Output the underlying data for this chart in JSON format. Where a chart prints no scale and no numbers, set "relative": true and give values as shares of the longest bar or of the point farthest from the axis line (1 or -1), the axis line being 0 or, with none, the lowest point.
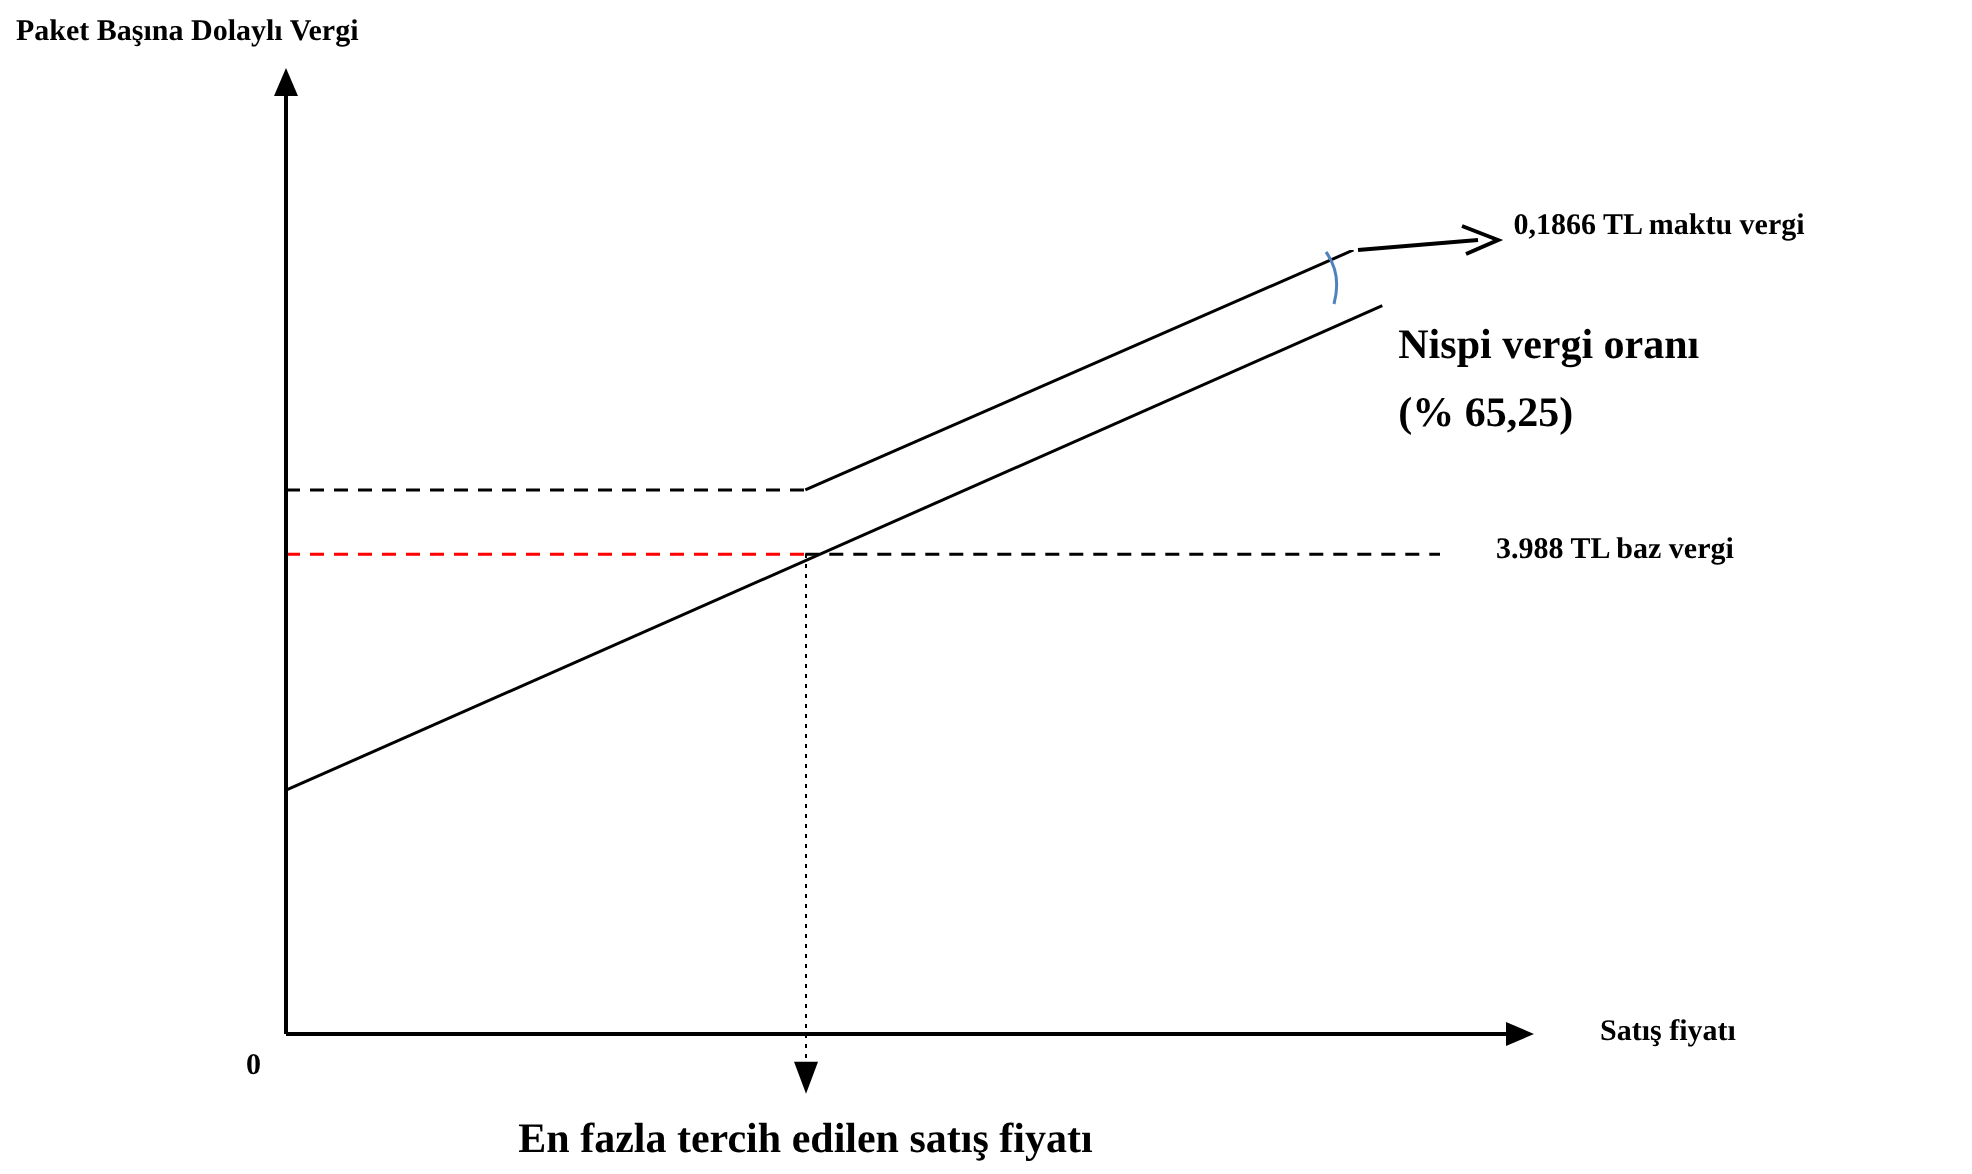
{
  "chart_data": {
    "type": "line",
    "relative": true,
    "xlabel": "Satış fiyatı",
    "legend": false,
    "marker": "none",
    "categories": [
      null,
      null,
      null,
      null,
      null,
      null,
      null,
      null,
      null,
      null,
      null,
      null,
      null,
      null,
      null,
      null,
      null,
      null,
      null,
      null,
      null,
      null,
      null,
      null,
      null,
      null,
      null,
      null,
      null,
      null,
      null,
      null,
      null,
      null,
      null,
      null,
      null,
      null,
      null,
      null,
      null
    ],
    "series": [
      {
        "color": "#000000",
        "line_style": "solid",
        "values": [
          0.311,
          null,
          null,
          null,
          null,
          null,
          null,
          null,
          null,
          null,
          null,
          null,
          null,
          null,
          null,
          null,
          null,
          null,
          null,
          null,
          null,
          null,
          null,
          null,
          null,
          null,
          null,
          null,
          null,
          null,
          null,
          null,
          null,
          null,
          null,
          null,
          null,
          null,
          0.929,
          null,
          null
        ]
      },
      {
        "color": "#000000",
        "line_style": "dashed",
        "values": [
          0.694,
          null,
          null,
          null,
          null,
          null,
          null,
          null,
          null,
          null,
          null,
          null,
          null,
          null,
          null,
          null,
          null,
          null,
          0.694,
          null,
          null,
          null,
          null,
          null,
          null,
          null,
          null,
          null,
          null,
          null,
          null,
          null,
          null,
          null,
          null,
          null,
          null,
          null,
          null,
          null,
          null
        ]
      },
      {
        "color": "#000000",
        "line_style": "solid",
        "values": [
          null,
          null,
          null,
          null,
          null,
          null,
          null,
          null,
          null,
          null,
          null,
          null,
          null,
          null,
          null,
          null,
          null,
          null,
          0.694,
          null,
          null,
          null,
          null,
          null,
          null,
          null,
          null,
          null,
          null,
          null,
          null,
          null,
          null,
          null,
          null,
          null,
          null,
          1,
          null,
          null,
          null
        ]
      },
      {
        "color": "#ff0000",
        "line_style": "dashed",
        "values": [
          0.612,
          null,
          null,
          null,
          null,
          null,
          null,
          null,
          null,
          null,
          null,
          null,
          null,
          null,
          null,
          null,
          null,
          null,
          0.612,
          null,
          null,
          null,
          null,
          null,
          null,
          null,
          null,
          null,
          null,
          null,
          null,
          null,
          null,
          null,
          null,
          null,
          null,
          null,
          null,
          null,
          null
        ]
      },
      {
        "color": "#000000",
        "line_style": "dashed",
        "values": [
          null,
          null,
          null,
          null,
          null,
          null,
          null,
          null,
          null,
          null,
          null,
          null,
          null,
          null,
          null,
          null,
          null,
          null,
          0.612,
          null,
          null,
          null,
          null,
          null,
          null,
          null,
          null,
          null,
          null,
          null,
          null,
          null,
          null,
          null,
          null,
          null,
          null,
          null,
          null,
          null,
          0.612
        ]
      }
    ],
    "annotations": [
      "0",
      "0,1866 TL maktu vergi",
      "Nispi vergi oranı (% 65,25)",
      "3.988 TL baz vergi",
      "En fazla tercih edilen satış fiyatı",
      "Paket Başına Dolaylı Vergi"
    ]
  }
}
